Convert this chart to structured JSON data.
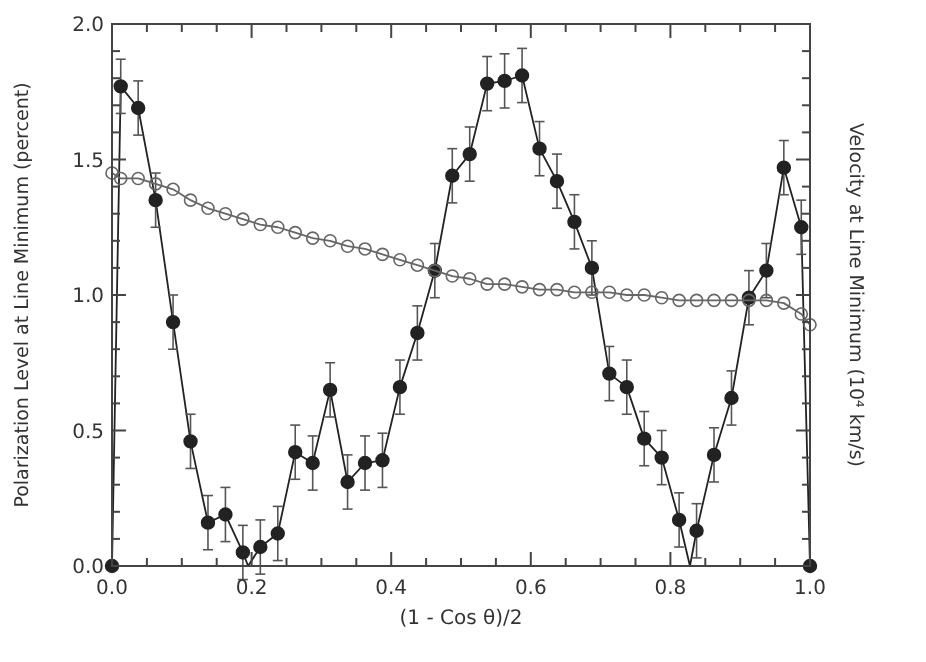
{
  "chart_data": {
    "type": "scatter",
    "xlabel": "(1 - Cos θ)/2",
    "ylabel": "Polarization Level at Line Minimum (percent)",
    "y2label": "Velocity at Line Minimum (10⁴ km/s)",
    "xlim": [
      0,
      1
    ],
    "ylim": [
      0,
      2
    ],
    "xticks": [
      {
        "value": 0,
        "label": "0.0"
      },
      {
        "value": 0.05,
        "label": null
      },
      {
        "value": 0.1,
        "label": null
      },
      {
        "value": 0.15,
        "label": null
      },
      {
        "value": 0.2,
        "label": "0.2"
      },
      {
        "value": 0.25,
        "label": null
      },
      {
        "value": 0.3,
        "label": null
      },
      {
        "value": 0.35,
        "label": null
      },
      {
        "value": 0.4,
        "label": "0.4"
      },
      {
        "value": 0.45,
        "label": null
      },
      {
        "value": 0.5,
        "label": null
      },
      {
        "value": 0.55,
        "label": null
      },
      {
        "value": 0.6,
        "label": "0.6"
      },
      {
        "value": 0.65,
        "label": null
      },
      {
        "value": 0.7,
        "label": null
      },
      {
        "value": 0.75,
        "label": null
      },
      {
        "value": 0.8,
        "label": "0.8"
      },
      {
        "value": 0.85,
        "label": null
      },
      {
        "value": 0.9,
        "label": null
      },
      {
        "value": 0.95,
        "label": null
      },
      {
        "value": 1,
        "label": "1.0"
      }
    ],
    "yticks": [
      {
        "value": 0,
        "label": "0.0"
      },
      {
        "value": 0.1,
        "label": null
      },
      {
        "value": 0.2,
        "label": null
      },
      {
        "value": 0.3,
        "label": null
      },
      {
        "value": 0.4,
        "label": null
      },
      {
        "value": 0.5,
        "label": "0.5"
      },
      {
        "value": 0.6,
        "label": null
      },
      {
        "value": 0.7,
        "label": null
      },
      {
        "value": 0.8,
        "label": null
      },
      {
        "value": 0.9,
        "label": null
      },
      {
        "value": 1,
        "label": "1.0"
      },
      {
        "value": 1.1,
        "label": null
      },
      {
        "value": 1.2,
        "label": null
      },
      {
        "value": 1.3,
        "label": null
      },
      {
        "value": 1.4,
        "label": null
      },
      {
        "value": 1.5,
        "label": "1.5"
      },
      {
        "value": 1.6,
        "label": null
      },
      {
        "value": 1.7,
        "label": null
      },
      {
        "value": 1.8,
        "label": null
      },
      {
        "value": 1.9,
        "label": null
      },
      {
        "value": 2,
        "label": "2.0"
      }
    ],
    "grid": false,
    "series": [
      {
        "type": "line",
        "color": "#222222",
        "marker": "none",
        "x": [
          0,
          0.0125,
          0.0375,
          0.0625,
          0.0875,
          0.1125,
          0.1375,
          0.1625,
          0.1875,
          0.195,
          0.2125,
          0.2375,
          0.2625,
          0.2875,
          0.3125,
          0.3375,
          0.3625,
          0.3875,
          0.4125,
          0.4375,
          0.4625,
          0.4875,
          0.5125,
          0.5375,
          0.5625,
          0.5875,
          0.6125,
          0.6375,
          0.6625,
          0.6875,
          0.7125,
          0.7375,
          0.7625,
          0.7875,
          0.8125,
          0.828,
          0.8375,
          0.8625,
          0.8875,
          0.9125,
          0.9375,
          0.9625,
          0.9875,
          1
        ],
        "values": [
          0,
          1.77,
          1.69,
          1.35,
          0.9,
          0.46,
          0.16,
          0.19,
          0.05,
          0,
          0.07,
          0.12,
          0.42,
          0.38,
          0.65,
          0.31,
          0.38,
          0.39,
          0.66,
          0.86,
          1.09,
          1.44,
          1.52,
          1.78,
          1.79,
          1.81,
          1.54,
          1.42,
          1.27,
          1.1,
          0.71,
          0.66,
          0.47,
          0.4,
          0.17,
          0,
          0.13,
          0.41,
          0.62,
          0.99,
          1.09,
          1.47,
          1.25,
          0
        ]
      },
      {
        "color": "#222222",
        "marker": "circle",
        "x": [
          0,
          0.0125,
          0.0375,
          0.0625,
          0.0875,
          0.1125,
          0.1375,
          0.1625,
          0.1875,
          0.2125,
          0.2375,
          0.2625,
          0.2875,
          0.3125,
          0.3375,
          0.3625,
          0.3875,
          0.4125,
          0.4375,
          0.4625,
          0.4875,
          0.5125,
          0.5375,
          0.5625,
          0.5875,
          0.6125,
          0.6375,
          0.6625,
          0.6875,
          0.7125,
          0.7375,
          0.7625,
          0.7875,
          0.8125,
          0.8375,
          0.8625,
          0.8875,
          0.9125,
          0.9375,
          0.9625,
          0.9875,
          1
        ],
        "values": [
          0,
          1.77,
          1.69,
          1.35,
          0.9,
          0.46,
          0.16,
          0.19,
          0.05,
          0.07,
          0.12,
          0.42,
          0.38,
          0.65,
          0.31,
          0.38,
          0.39,
          0.66,
          0.86,
          1.09,
          1.44,
          1.52,
          1.78,
          1.79,
          1.81,
          1.54,
          1.42,
          1.27,
          1.1,
          0.71,
          0.66,
          0.47,
          0.4,
          0.17,
          0.13,
          0.41,
          0.62,
          0.99,
          1.09,
          1.47,
          1.25,
          0
        ],
        "errors": [
          null,
          0.1,
          0.1,
          0.1,
          0.1,
          0.1,
          0.1,
          0.1,
          0.1,
          0.1,
          0.1,
          0.1,
          0.1,
          0.1,
          0.1,
          0.1,
          0.1,
          0.1,
          0.1,
          0.1,
          0.1,
          0.1,
          0.1,
          0.1,
          0.1,
          0.1,
          0.1,
          0.1,
          0.1,
          0.1,
          0.1,
          0.1,
          0.1,
          0.1,
          0.1,
          0.1,
          0.1,
          0.1,
          0.1,
          0.1,
          0.1,
          null
        ]
      },
      {
        "type": "line",
        "color": "#666666",
        "marker": "circle",
        "x": [
          0,
          0.0125,
          0.0375,
          0.0625,
          0.0875,
          0.1125,
          0.1375,
          0.1625,
          0.1875,
          0.2125,
          0.2375,
          0.2625,
          0.2875,
          0.3125,
          0.3375,
          0.3625,
          0.3875,
          0.4125,
          0.4375,
          0.4625,
          0.4875,
          0.5125,
          0.5375,
          0.5625,
          0.5875,
          0.6125,
          0.6375,
          0.6625,
          0.6875,
          0.7125,
          0.7375,
          0.7625,
          0.7875,
          0.8125,
          0.8375,
          0.8625,
          0.8875,
          0.9125,
          0.9375,
          0.9625,
          0.9875,
          1
        ],
        "values": [
          1.45,
          1.43,
          1.43,
          1.41,
          1.39,
          1.35,
          1.32,
          1.3,
          1.28,
          1.26,
          1.25,
          1.23,
          1.21,
          1.2,
          1.18,
          1.17,
          1.15,
          1.13,
          1.11,
          1.09,
          1.07,
          1.06,
          1.04,
          1.04,
          1.03,
          1.02,
          1.02,
          1.01,
          1.01,
          1.01,
          1.0,
          1.0,
          0.99,
          0.98,
          0.98,
          0.98,
          0.98,
          0.98,
          0.98,
          0.97,
          0.93,
          0.89
        ]
      }
    ]
  }
}
